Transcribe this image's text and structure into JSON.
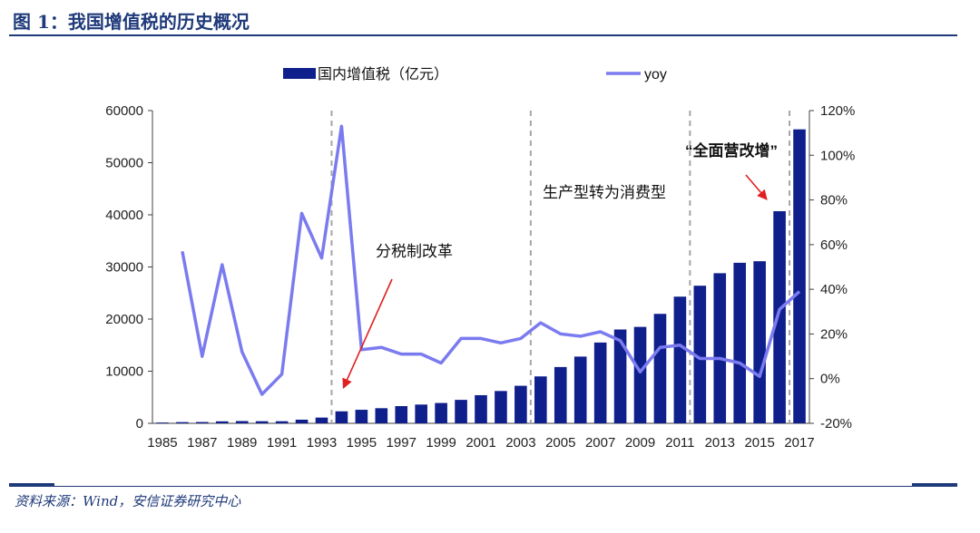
{
  "figure": {
    "title": "图 1：我国增值税的历史概况",
    "source": "资料来源：Wind，安信证券研究中心"
  },
  "colors": {
    "bar": "#0f1f8c",
    "line": "#7b7bf0",
    "title": "#1f3a7a",
    "divider": "#a6a6a6",
    "arrow": "#e02020"
  },
  "chart_data": {
    "type": "bar",
    "categories": [
      "1985",
      "1986",
      "1987",
      "1988",
      "1989",
      "1990",
      "1991",
      "1992",
      "1993",
      "1994",
      "1995",
      "1996",
      "1997",
      "1998",
      "1999",
      "2000",
      "2001",
      "2002",
      "2003",
      "2004",
      "2005",
      "2006",
      "2007",
      "2008",
      "2009",
      "2010",
      "2011",
      "2012",
      "2013",
      "2014",
      "2015",
      "2016",
      "2017"
    ],
    "x_tick_labels": [
      "1985",
      "1987",
      "1989",
      "1991",
      "1993",
      "1995",
      "1997",
      "1999",
      "2001",
      "2003",
      "2005",
      "2007",
      "2009",
      "2011",
      "2013",
      "2015",
      "2017"
    ],
    "series": [
      {
        "name": "国内增值税（亿元）",
        "type": "bar",
        "axis": "left",
        "values": [
          150,
          230,
          250,
          380,
          430,
          400,
          400,
          700,
          1100,
          2300,
          2600,
          2900,
          3300,
          3600,
          3900,
          4500,
          5400,
          6200,
          7200,
          9000,
          10800,
          12800,
          15500,
          18000,
          18500,
          21000,
          24300,
          26400,
          28800,
          30800,
          31100,
          40700,
          56400
        ]
      },
      {
        "name": "yoy",
        "type": "line",
        "axis": "right",
        "values": [
          null,
          57,
          10,
          51,
          12,
          -7,
          2,
          74,
          54,
          113,
          13,
          14,
          11,
          11,
          7,
          18,
          18,
          16,
          18,
          25,
          20,
          19,
          21,
          17,
          3,
          14,
          15,
          9,
          9,
          7,
          1,
          31,
          39
        ]
      }
    ],
    "y_left": {
      "min": 0,
      "max": 60000,
      "ticks": [
        "0",
        "10000",
        "20000",
        "30000",
        "40000",
        "50000",
        "60000"
      ]
    },
    "y_right": {
      "min": -20,
      "max": 120,
      "ticks": [
        "-20%",
        "0%",
        "20%",
        "40%",
        "60%",
        "80%",
        "100%",
        "120%"
      ]
    },
    "dividers_after_year": [
      "1993",
      "2003",
      "2011",
      "2016"
    ],
    "annotations": [
      {
        "text": "分税制改革",
        "arrow_year": "1994"
      },
      {
        "text": "生产型转为消费型"
      },
      {
        "text": "“全面营改增”",
        "arrow_year": "2016"
      }
    ],
    "legend": {
      "position": "top"
    },
    "grid": false
  }
}
